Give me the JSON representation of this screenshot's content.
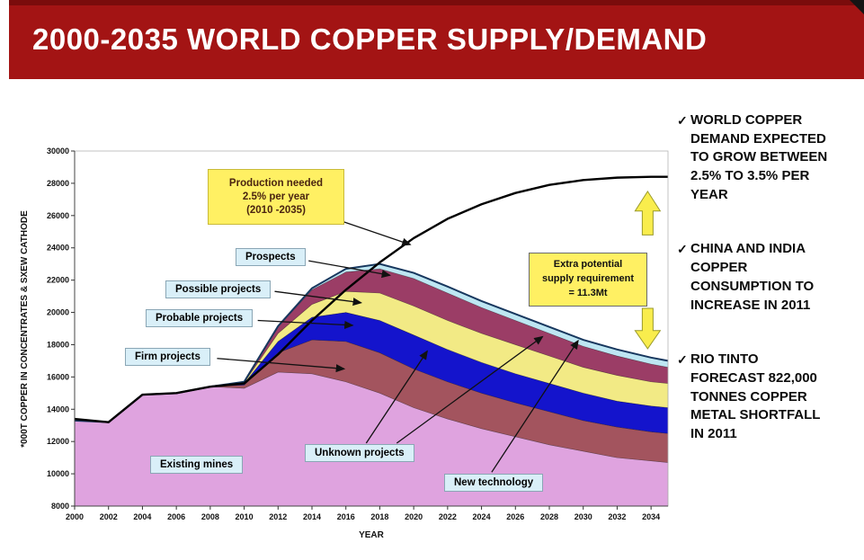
{
  "header": {
    "title": "2000-2035 WORLD COPPER SUPPLY/DEMAND"
  },
  "theme": {
    "banner_red": "#A31414",
    "callout_yellow": "#FFF063",
    "callout_blue": "#D9EFF8",
    "block_arrow_yellow": "#F9ED4D"
  },
  "callouts": {
    "production": {
      "l1": "Production needed",
      "l2": "2.5% per year",
      "l3": "(2010 -2035)"
    },
    "extra": {
      "l1": "Extra potential",
      "l2": "supply requirement",
      "l3": "= 11.3Mt"
    },
    "prospects": "Prospects",
    "possible": "Possible projects",
    "probable": "Probable projects",
    "firm": "Firm projects",
    "existing": "Existing mines",
    "unknown": "Unknown projects",
    "newtech": "New technology"
  },
  "bullets": {
    "check": "✓",
    "items": [
      {
        "text": "WORLD COPPER DEMAND EXPECTED TO GROW BETWEEN 2.5% TO 3.5% PER YEAR"
      },
      {
        "text": "CHINA AND INDIA COPPER CONSUMPTION TO INCREASE IN 2011"
      },
      {
        "text": "RIO TINTO FORECAST 822,000 TONNES COPPER METAL SHORTFALL IN 2011"
      }
    ]
  },
  "chart_data": {
    "type": "area",
    "title": "",
    "xlabel": "YEAR",
    "ylabel": "*000T COPPER IN CONCENTRATES & SXEW CATHODE",
    "xlim": [
      2000,
      2035
    ],
    "ylim": [
      8000,
      30000
    ],
    "grid": false,
    "legend": "labels-with-arrows",
    "x_ticks": [
      2000,
      2002,
      2004,
      2006,
      2008,
      2010,
      2012,
      2014,
      2016,
      2018,
      2020,
      2022,
      2024,
      2026,
      2028,
      2030,
      2032,
      2034
    ],
    "y_ticks": [
      8000,
      10000,
      12000,
      14000,
      16000,
      18000,
      20000,
      22000,
      24000,
      26000,
      28000,
      30000
    ],
    "x": [
      2000,
      2002,
      2004,
      2006,
      2008,
      2010,
      2012,
      2014,
      2016,
      2018,
      2020,
      2022,
      2024,
      2026,
      2028,
      2030,
      2032,
      2034,
      2035
    ],
    "stack_mode": "cumulative_top",
    "series": [
      {
        "name": "Existing mines",
        "color": "#DFA3DF",
        "values": [
          13300,
          13200,
          14900,
          15000,
          15400,
          15300,
          16300,
          16200,
          15700,
          15000,
          14100,
          13400,
          12800,
          12300,
          11800,
          11400,
          11000,
          10800,
          10700
        ]
      },
      {
        "name": "Firm projects",
        "color": "#A3545E",
        "values": [
          13300,
          13200,
          14900,
          15000,
          15400,
          15500,
          17500,
          18300,
          18200,
          17500,
          16500,
          15700,
          15000,
          14400,
          13850,
          13300,
          12900,
          12600,
          12500
        ]
      },
      {
        "name": "Probable projects",
        "color": "#1414CC",
        "values": [
          13300,
          13200,
          14900,
          15000,
          15400,
          15600,
          18200,
          19700,
          20000,
          19500,
          18600,
          17700,
          16900,
          16200,
          15600,
          15000,
          14500,
          14200,
          14100
        ]
      },
      {
        "name": "Possible projects",
        "color": "#F2EA85",
        "values": [
          13300,
          13200,
          14900,
          15000,
          15400,
          15650,
          18700,
          20500,
          21300,
          21200,
          20400,
          19500,
          18700,
          18000,
          17300,
          16600,
          16100,
          15700,
          15600
        ]
      },
      {
        "name": "Prospects",
        "color": "#9B3D66",
        "values": [
          13300,
          13200,
          14900,
          15000,
          15400,
          15700,
          19100,
          21400,
          22500,
          22700,
          22100,
          21200,
          20300,
          19500,
          18700,
          17900,
          17300,
          16800,
          16600
        ]
      },
      {
        "name": "New technology",
        "color": "#BEE6F2",
        "values": [
          13300,
          13200,
          14900,
          15000,
          15400,
          15700,
          19150,
          21500,
          22700,
          23000,
          22450,
          21600,
          20700,
          19900,
          19100,
          18300,
          17700,
          17200,
          17000
        ]
      }
    ],
    "demand_line": {
      "name": "Production needed 2.5% per year (2010-2035)",
      "color": "#000000",
      "values": [
        13400,
        13200,
        14900,
        15000,
        15400,
        15600,
        17400,
        19500,
        21400,
        23100,
        24600,
        25800,
        26700,
        27400,
        27900,
        28200,
        28350,
        28400,
        28400
      ]
    },
    "annotations": {
      "extra_supply_requirement_mt": 11.3,
      "arrows": [
        {
          "name": "production-to-line",
          "from": [
            2015.9,
            25600
          ],
          "to": [
            2019.8,
            24200
          ]
        },
        {
          "name": "prospects",
          "from": [
            2013.8,
            23200
          ],
          "to": [
            2018.6,
            22300
          ]
        },
        {
          "name": "possible",
          "from": [
            2011.8,
            21300
          ],
          "to": [
            2016.9,
            20600
          ]
        },
        {
          "name": "probable",
          "from": [
            2010.8,
            19500
          ],
          "to": [
            2016.4,
            19200
          ]
        },
        {
          "name": "firm",
          "from": [
            2008.4,
            17150
          ],
          "to": [
            2015.9,
            16500
          ]
        },
        {
          "name": "unknown-a",
          "from": [
            2017.2,
            11900
          ],
          "to": [
            2020.8,
            17600
          ]
        },
        {
          "name": "unknown-b",
          "from": [
            2019.0,
            11900
          ],
          "to": [
            2027.6,
            18500
          ]
        },
        {
          "name": "newtech",
          "from": [
            2024.6,
            10100
          ],
          "to": [
            2029.7,
            18250
          ]
        }
      ],
      "block_arrows": [
        {
          "name": "demand-up-arrow",
          "year": 2033.8,
          "tip": 27500,
          "base": 24800
        },
        {
          "name": "supply-down-arrow",
          "year": 2033.8,
          "tip": 17750,
          "base": 20250
        }
      ]
    }
  }
}
